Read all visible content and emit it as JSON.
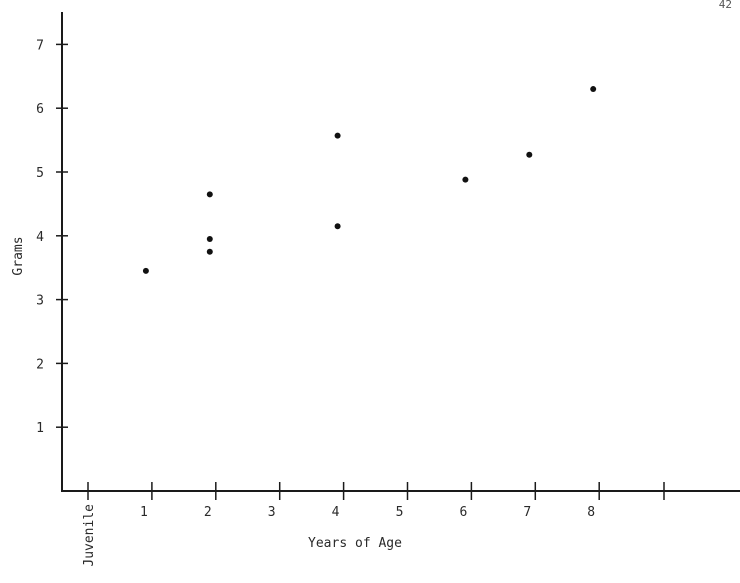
{
  "page_number": "42",
  "chart_data": {
    "type": "scatter",
    "title": "",
    "xlabel": "Years of Age",
    "ylabel": "Grams",
    "x_categories": [
      "Juvenile",
      "1",
      "2",
      "3",
      "4",
      "5",
      "6",
      "7",
      "8"
    ],
    "y_ticks": [
      "1",
      "2",
      "3",
      "4",
      "5",
      "6",
      "7"
    ],
    "xlim": [
      0,
      9.4
    ],
    "ylim": [
      0,
      7.4
    ],
    "grid": false,
    "legend": "none",
    "points": [
      {
        "x": 1,
        "y": 3.45
      },
      {
        "x": 2,
        "y": 4.65
      },
      {
        "x": 2,
        "y": 3.95
      },
      {
        "x": 2,
        "y": 3.75
      },
      {
        "x": 4,
        "y": 5.57
      },
      {
        "x": 4,
        "y": 4.15
      },
      {
        "x": 6,
        "y": 4.88
      },
      {
        "x": 7,
        "y": 5.27
      },
      {
        "x": 8,
        "y": 6.3
      }
    ],
    "point_color": "#111111"
  }
}
